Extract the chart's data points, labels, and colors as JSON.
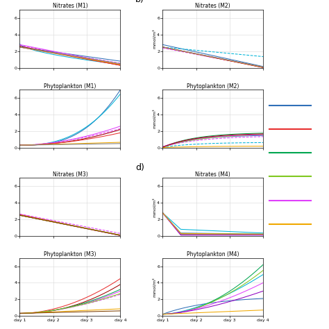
{
  "titles": {
    "nit_m1": "Nitrates (M1)",
    "phy_m1": "Phytoplankton (M1)",
    "nit_m2": "Nitrates (M2)",
    "phy_m2": "Phytoplankton (M2)",
    "nit_m3": "Nitrates (M3)",
    "phy_m3": "Phytoplankton (M3)",
    "nit_m4": "Nitrates (M4)",
    "phy_m4": "Phytoplankton (M4)"
  },
  "ylabel": "mmol/m³",
  "xtick_labels": [
    "day 1",
    "day 2",
    "day 3",
    "day 4"
  ],
  "yticks": [
    0,
    2,
    4,
    6
  ],
  "ylim": [
    0,
    7
  ],
  "colors": {
    "blue": "#3070B8",
    "cyan": "#00B4D8",
    "green": "#00A550",
    "lime": "#80C820",
    "magenta": "#E040FB",
    "dark_red": "#A00000",
    "red": "#E83030",
    "orange": "#F0A800",
    "gray": "#808080",
    "dark_mag": "#9000C0",
    "brown": "#804000"
  },
  "legend_colors": [
    "#3070B8",
    "#E83030",
    "#00A550",
    "#80C820",
    "#E040FB",
    "#F0A800"
  ],
  "background": "#ffffff",
  "grid_color": "#d8d8d8",
  "panel_b_label": "b)",
  "panel_d_label": "d)"
}
